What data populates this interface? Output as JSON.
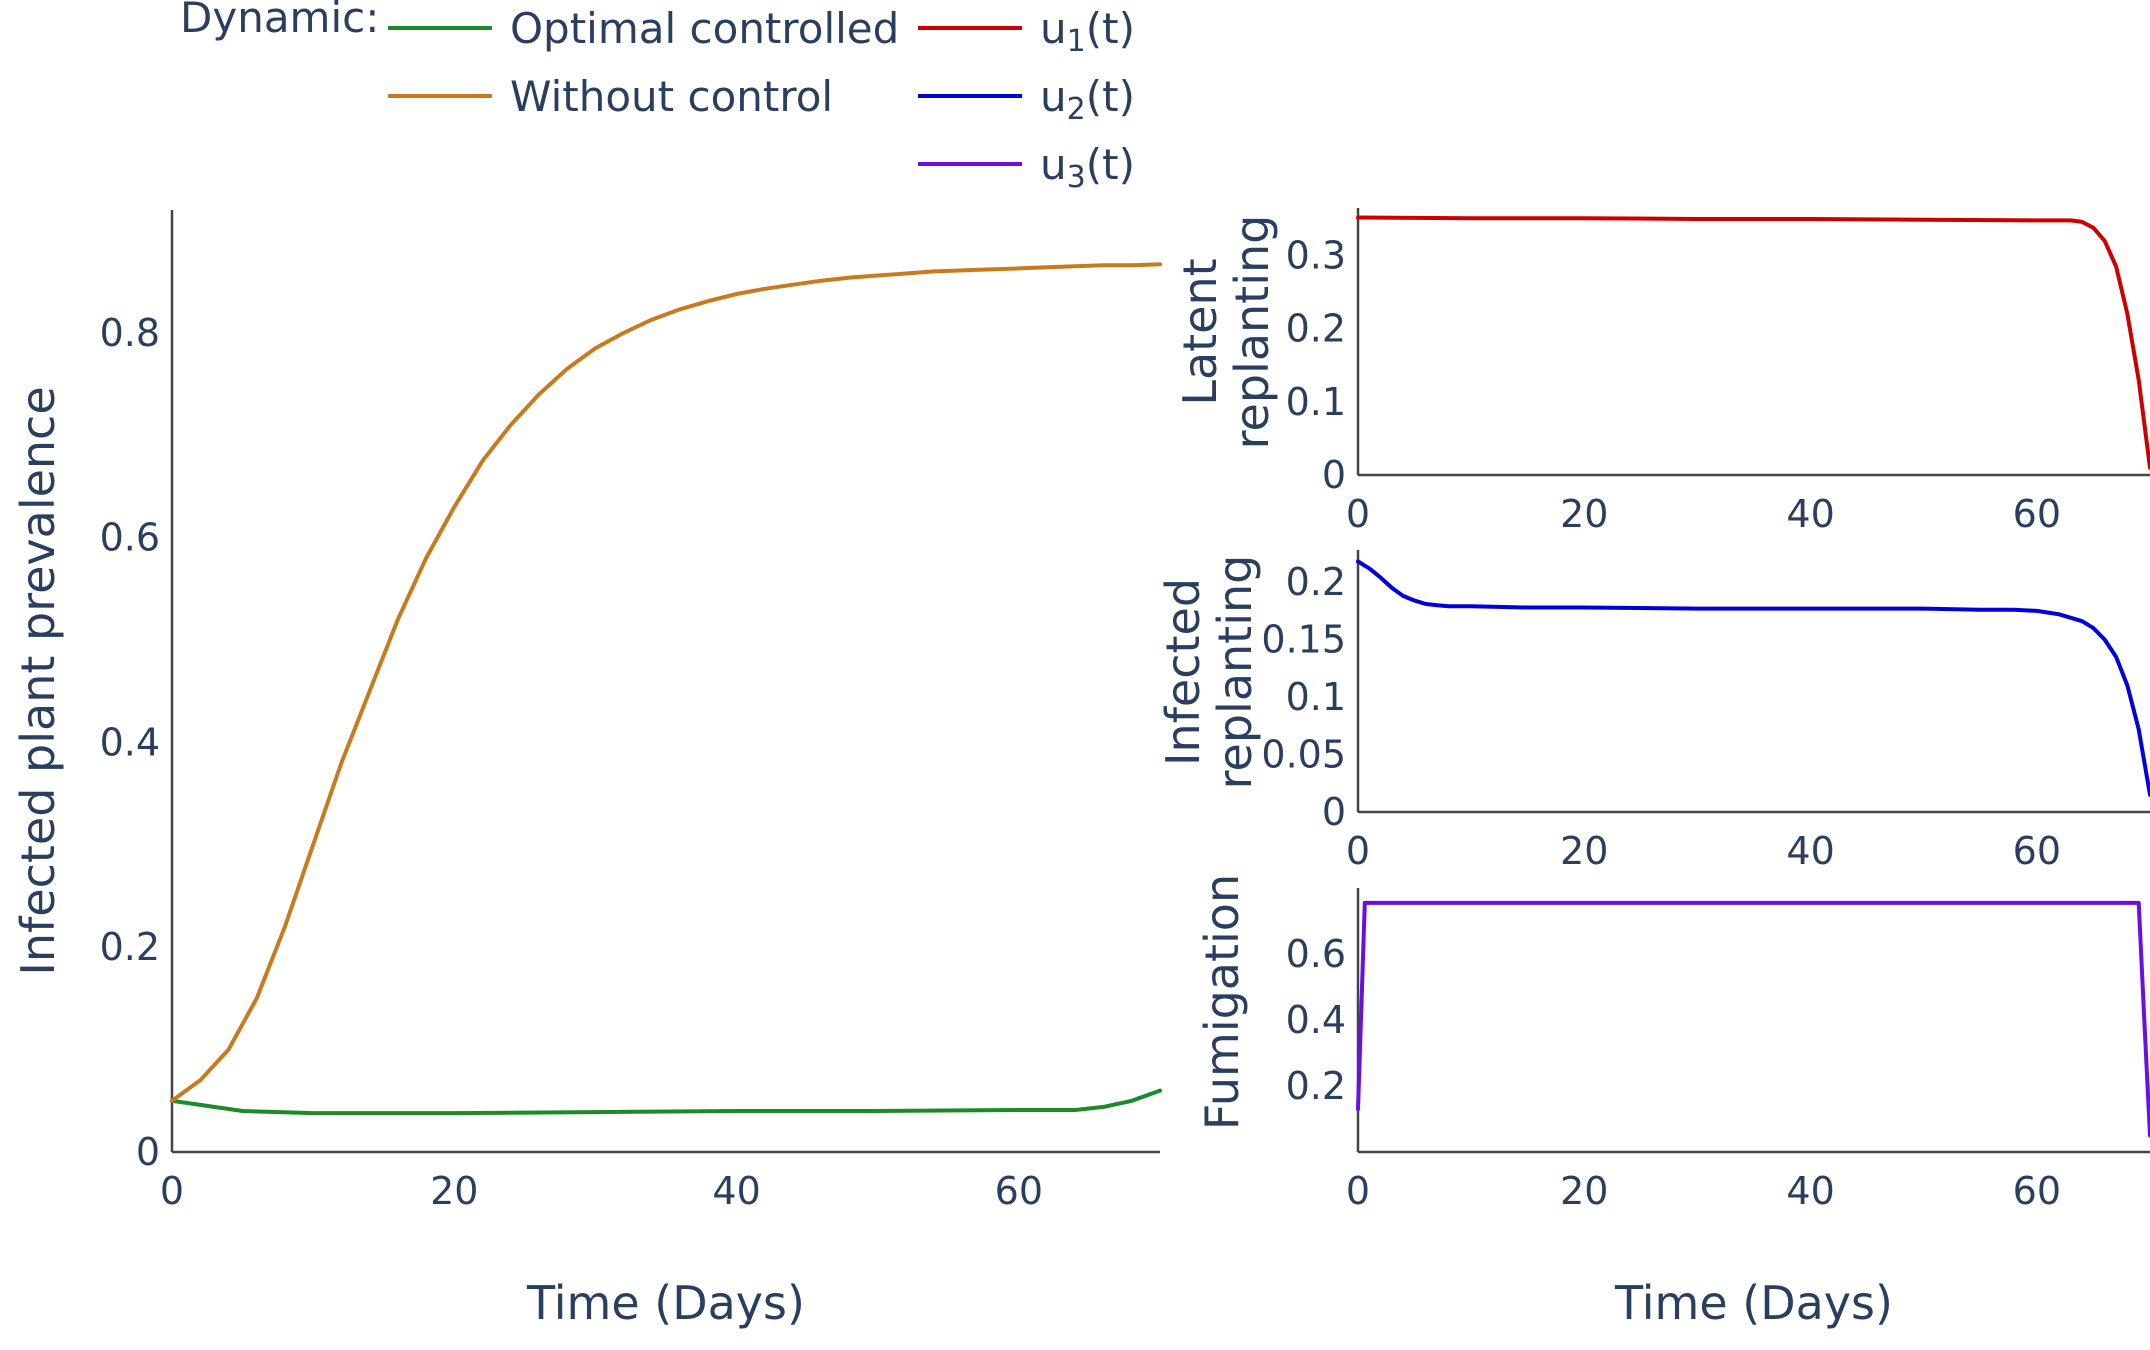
{
  "legend": {
    "title": "Dynamic:",
    "entries": [
      {
        "label": "Optimal controlled",
        "color": "#1a8a2a"
      },
      {
        "label": "Without control",
        "color": "#c87a1e"
      },
      {
        "label": "u",
        "sub": "1",
        "suffix": "(t)",
        "color": "#cc0000"
      },
      {
        "label": "u",
        "sub": "2",
        "suffix": "(t)",
        "color": "#0000dd"
      },
      {
        "label": "u",
        "sub": "3",
        "suffix": "(t)",
        "color": "#6a0ee6"
      }
    ]
  },
  "chart_data": [
    {
      "type": "line",
      "id": "main",
      "title": "",
      "xlabel": "Time (Days)",
      "ylabel": "Infected plant prevalence",
      "xlim": [
        0,
        70
      ],
      "ylim": [
        0,
        0.92
      ],
      "xticks": [
        0,
        20,
        40,
        60
      ],
      "xtick_labels": [
        "0",
        "20",
        "40",
        "60"
      ],
      "yticks": [
        0,
        0.2,
        0.4,
        0.6,
        0.8
      ],
      "ytick_labels": [
        "0",
        "0.2",
        "0.4",
        "0.6",
        "0.8"
      ],
      "series": [
        {
          "name": "Optimal controlled",
          "color": "#1a8a2a",
          "x": [
            0,
            2,
            5,
            10,
            15,
            20,
            30,
            40,
            50,
            60,
            64,
            66,
            68,
            70
          ],
          "y": [
            0.05,
            0.046,
            0.04,
            0.038,
            0.038,
            0.038,
            0.039,
            0.04,
            0.04,
            0.041,
            0.041,
            0.044,
            0.05,
            0.06
          ]
        },
        {
          "name": "Without control",
          "color": "#c87a1e",
          "x": [
            0,
            2,
            4,
            6,
            8,
            10,
            12,
            14,
            16,
            18,
            20,
            22,
            24,
            26,
            28,
            30,
            32,
            34,
            36,
            38,
            40,
            42,
            44,
            46,
            48,
            50,
            52,
            54,
            56,
            58,
            60,
            62,
            64,
            66,
            68,
            70
          ],
          "y": [
            0.05,
            0.07,
            0.1,
            0.15,
            0.22,
            0.3,
            0.38,
            0.45,
            0.52,
            0.58,
            0.63,
            0.675,
            0.71,
            0.74,
            0.765,
            0.785,
            0.8,
            0.813,
            0.823,
            0.831,
            0.838,
            0.843,
            0.847,
            0.851,
            0.854,
            0.856,
            0.858,
            0.86,
            0.861,
            0.862,
            0.863,
            0.864,
            0.865,
            0.866,
            0.866,
            0.867
          ]
        }
      ]
    },
    {
      "type": "line",
      "id": "u1",
      "xlabel": "",
      "ylabel": [
        "Latent",
        "replanting"
      ],
      "xlim": [
        0,
        70
      ],
      "ylim": [
        0,
        0.365
      ],
      "xticks": [
        0,
        20,
        40,
        60
      ],
      "xtick_labels": [
        "0",
        "20",
        "40",
        "60"
      ],
      "yticks": [
        0,
        0.1,
        0.2,
        0.3
      ],
      "ytick_labels": [
        "0",
        "0.1",
        "0.2",
        "0.3"
      ],
      "series": [
        {
          "name": "u1(t)",
          "color": "#cc0000",
          "x": [
            0,
            10,
            20,
            30,
            40,
            50,
            60,
            63,
            64,
            65,
            66,
            67,
            68,
            69,
            70
          ],
          "y": [
            0.352,
            0.351,
            0.351,
            0.35,
            0.35,
            0.349,
            0.348,
            0.348,
            0.346,
            0.338,
            0.32,
            0.285,
            0.22,
            0.13,
            0.01
          ]
        }
      ]
    },
    {
      "type": "line",
      "id": "u2",
      "xlabel": "",
      "ylabel": [
        "Infected",
        "replanting"
      ],
      "xlim": [
        0,
        70
      ],
      "ylim": [
        0,
        0.228
      ],
      "xticks": [
        0,
        20,
        40,
        60
      ],
      "xtick_labels": [
        "0",
        "20",
        "40",
        "60"
      ],
      "yticks": [
        0,
        0.05,
        0.1,
        0.15,
        0.2
      ],
      "ytick_labels": [
        "0",
        "0.05",
        "0.1",
        "0.15",
        "0.2"
      ],
      "series": [
        {
          "name": "u2(t)",
          "color": "#0000dd",
          "x": [
            0,
            1,
            2,
            3,
            4,
            5,
            6,
            7,
            8,
            10,
            15,
            20,
            30,
            40,
            50,
            55,
            58,
            60,
            62,
            64,
            65,
            66,
            67,
            68,
            69,
            70
          ],
          "y": [
            0.218,
            0.212,
            0.204,
            0.195,
            0.188,
            0.184,
            0.181,
            0.18,
            0.179,
            0.179,
            0.178,
            0.178,
            0.177,
            0.177,
            0.177,
            0.176,
            0.176,
            0.175,
            0.172,
            0.166,
            0.16,
            0.15,
            0.135,
            0.11,
            0.072,
            0.015
          ]
        }
      ]
    },
    {
      "type": "line",
      "id": "u3",
      "xlabel": "Time (Days)",
      "ylabel": [
        "Fumigation"
      ],
      "xlim": [
        0,
        70
      ],
      "ylim": [
        0,
        0.8
      ],
      "xticks": [
        0,
        20,
        40,
        60
      ],
      "xtick_labels": [
        "0",
        "20",
        "40",
        "60"
      ],
      "yticks": [
        0.2,
        0.4,
        0.6
      ],
      "ytick_labels": [
        "0.2",
        "0.4",
        "0.6"
      ],
      "series": [
        {
          "name": "u3(t)",
          "color": "#6a0ee6",
          "x": [
            0,
            0.6,
            10,
            20,
            30,
            40,
            50,
            60,
            69,
            69.5,
            70
          ],
          "y": [
            0.13,
            0.755,
            0.755,
            0.755,
            0.755,
            0.755,
            0.755,
            0.755,
            0.755,
            0.4,
            0.05
          ]
        }
      ]
    }
  ]
}
